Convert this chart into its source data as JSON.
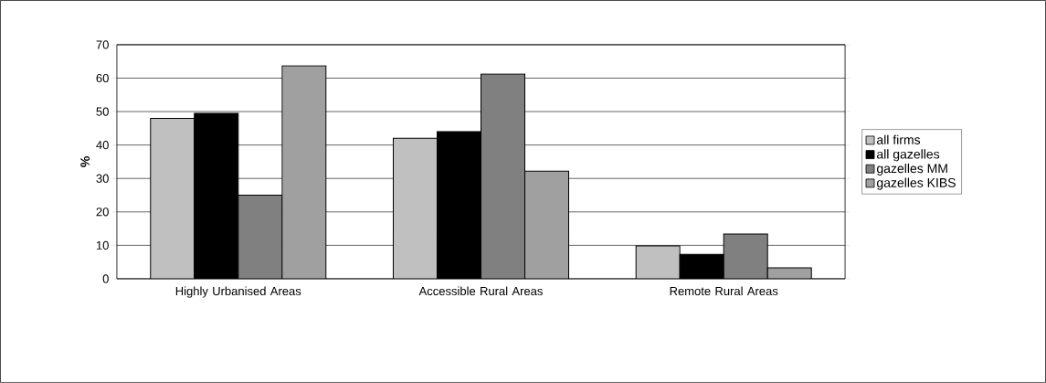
{
  "chart_data": {
    "type": "bar",
    "ylabel": "%",
    "categories": [
      "Highly Urbanised Areas",
      "Accessible Rural Areas",
      "Remote Rural Areas"
    ],
    "series": [
      {
        "name": "all firms",
        "color": "#c0c0c0",
        "values": [
          48,
          42,
          9.8
        ]
      },
      {
        "name": "all gazelles",
        "color": "#000000",
        "values": [
          49.5,
          44,
          7.3
        ]
      },
      {
        "name": "gazelles MM",
        "color": "#808080",
        "values": [
          25,
          61.2,
          13.4
        ]
      },
      {
        "name": "gazelles KIBS",
        "color": "#a0a0a0",
        "values": [
          63.7,
          32.2,
          3.3
        ]
      }
    ],
    "ylim": [
      0,
      70
    ],
    "yticks": [
      0,
      10,
      20,
      30,
      40,
      50,
      60,
      70
    ],
    "grid": "y",
    "legend": "right"
  }
}
